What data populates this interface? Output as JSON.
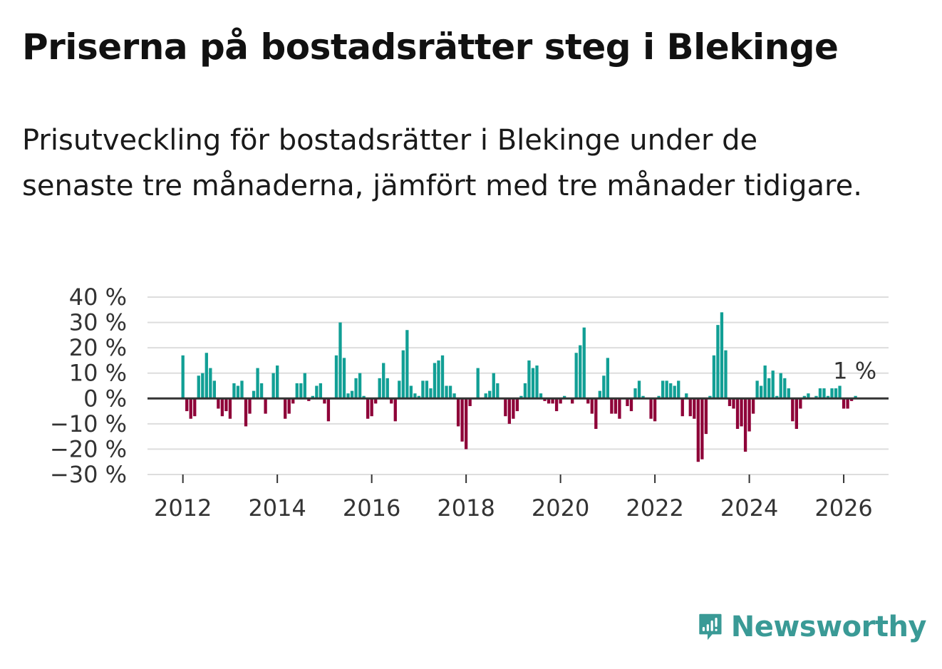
{
  "title": "Priserna på bostadsrätter steg i Blekinge",
  "subtitle": "Prisutveckling för bostadsrätter i Blekinge under de senaste tre månaderna, jämfört med tre månader tidigare.",
  "logo": {
    "name": "Newsworthy",
    "icon": "newsworthy-logo-icon"
  },
  "colors": {
    "positive": "#119f95",
    "negative": "#8e0038",
    "grid": "#dddddd",
    "zero": "#333333"
  },
  "chart_data": {
    "type": "bar",
    "title": "Priserna på bostadsrätter steg i Blekinge",
    "xlabel": "",
    "ylabel": "",
    "ylim": [
      -30,
      40
    ],
    "xlim": [
      2011.25,
      2026.95
    ],
    "yticks": [
      40,
      30,
      20,
      10,
      0,
      -10,
      -20,
      -30
    ],
    "ytick_labels": [
      "40 %",
      "30 %",
      "20 %",
      "10 %",
      "0 %",
      "−10 %",
      "−20 %",
      "−30 %"
    ],
    "xticks": [
      2012,
      2014,
      2016,
      2018,
      2020,
      2022,
      2024,
      2026
    ],
    "xtick_labels": [
      "2012",
      "2014",
      "2016",
      "2018",
      "2020",
      "2022",
      "2024",
      "2026"
    ],
    "start_year": 2012,
    "start_month": 1,
    "annotation": "1 %",
    "values": [
      17,
      -5,
      -8,
      -7,
      9,
      10,
      18,
      12,
      7,
      -4,
      -7,
      -5,
      -8,
      6,
      5,
      7,
      -11,
      -6,
      3,
      12,
      6,
      -6,
      0,
      10,
      13,
      0,
      -8,
      -6,
      -2,
      6,
      6,
      10,
      -1,
      1,
      5,
      6,
      -2,
      -9,
      0,
      17,
      30,
      16,
      2,
      3,
      8,
      10,
      1,
      -8,
      -7,
      -2,
      8,
      14,
      8,
      -2,
      -9,
      7,
      19,
      27,
      5,
      2,
      1,
      7,
      7,
      4,
      14,
      15,
      17,
      5,
      5,
      2,
      -11,
      -17,
      -20,
      -3,
      0,
      12,
      0,
      2,
      3,
      10,
      6,
      0,
      -7,
      -10,
      -8,
      -5,
      1,
      6,
      15,
      12,
      13,
      2,
      -1,
      -2,
      -2,
      -5,
      -2,
      1,
      0,
      -2,
      18,
      21,
      28,
      -2,
      -6,
      -12,
      3,
      9,
      16,
      -6,
      -6,
      -8,
      0,
      -3,
      -5,
      4,
      7,
      1,
      0,
      -8,
      -9,
      1,
      7,
      7,
      6,
      5,
      7,
      -7,
      2,
      -7,
      -8,
      -25,
      -24,
      -14,
      1,
      17,
      29,
      34,
      19,
      -3,
      -4,
      -12,
      -11,
      -21,
      -13,
      -6,
      7,
      5,
      13,
      8,
      11,
      1,
      10,
      8,
      4,
      -9,
      -12,
      -4,
      1,
      2,
      0,
      1,
      4,
      4,
      1,
      4,
      4,
      5,
      -4,
      -4,
      -1,
      1
    ]
  }
}
